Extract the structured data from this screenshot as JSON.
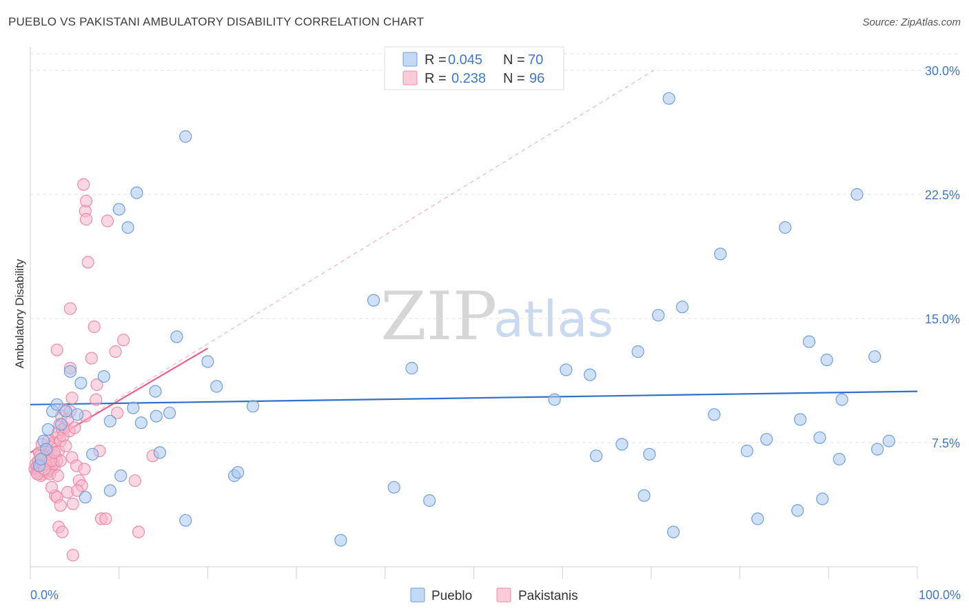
{
  "header": {
    "title": "PUEBLO VS PAKISTANI AMBULATORY DISABILITY CORRELATION CHART",
    "source": "Source: ZipAtlas.com"
  },
  "watermark": {
    "zip": "ZIP",
    "atlas": "atlas"
  },
  "legend": {
    "rows": [
      {
        "r_label": "R =",
        "r_value": "0.045",
        "n_label": "N =",
        "n_value": "70"
      },
      {
        "r_label": "R =",
        "r_value": "0.238",
        "n_label": "N =",
        "n_value": "96"
      }
    ]
  },
  "bottom_legend": {
    "pueblo": "Pueblo",
    "pakistanis": "Pakistanis"
  },
  "colors": {
    "pueblo_fill": "#a9c8f0",
    "pueblo_stroke": "#6f9edb",
    "pueblo_line": "#2f6fcc",
    "pakistani_fill": "#f7b6c8",
    "pakistani_stroke": "#ec8aa8",
    "pakistani_line": "#e8608f",
    "axis_label": "#3f78c8",
    "grid": "#e3e3e3"
  },
  "chart_data": {
    "type": "scatter",
    "title": "PUEBLO VS PAKISTANI AMBULATORY DISABILITY CORRELATION CHART",
    "xlabel": "",
    "ylabel": "Ambulatory Disability",
    "xlim": [
      0,
      100
    ],
    "ylim": [
      0,
      31
    ],
    "x_tick_labels": [
      "0.0%",
      "100.0%"
    ],
    "y_ticks": [
      7.5,
      15.0,
      22.5,
      30.0
    ],
    "y_tick_labels": [
      "7.5%",
      "15.0%",
      "22.5%",
      "30.0%"
    ],
    "grid": true,
    "series": [
      {
        "name": "Pueblo",
        "R": 0.045,
        "N": 70,
        "trend": {
          "x": [
            0,
            100
          ],
          "y": [
            9.8,
            10.6
          ]
        },
        "points": [
          [
            2.0,
            8.3
          ],
          [
            2.5,
            9.4
          ],
          [
            3.0,
            9.8
          ],
          [
            3.5,
            8.6
          ],
          [
            4.0,
            9.4
          ],
          [
            4.5,
            11.8
          ],
          [
            5.3,
            9.2
          ],
          [
            5.7,
            11.1
          ],
          [
            6.2,
            4.2
          ],
          [
            7.0,
            6.8
          ],
          [
            8.3,
            11.5
          ],
          [
            9.0,
            8.8
          ],
          [
            9.0,
            4.6
          ],
          [
            10.2,
            5.5
          ],
          [
            10.0,
            21.6
          ],
          [
            11.0,
            20.5
          ],
          [
            11.6,
            9.6
          ],
          [
            12.0,
            22.6
          ],
          [
            12.5,
            8.7
          ],
          [
            14.1,
            10.6
          ],
          [
            14.2,
            9.1
          ],
          [
            14.6,
            6.9
          ],
          [
            15.7,
            9.3
          ],
          [
            16.5,
            13.9
          ],
          [
            17.5,
            26.0
          ],
          [
            17.5,
            2.8
          ],
          [
            20.0,
            12.4
          ],
          [
            21.0,
            10.9
          ],
          [
            23.0,
            5.5
          ],
          [
            23.4,
            5.7
          ],
          [
            25.1,
            9.7
          ],
          [
            35.0,
            1.6
          ],
          [
            38.7,
            16.1
          ],
          [
            41.0,
            4.8
          ],
          [
            43.0,
            12.0
          ],
          [
            45.0,
            4.0
          ],
          [
            59.1,
            10.1
          ],
          [
            60.4,
            11.9
          ],
          [
            63.1,
            11.6
          ],
          [
            63.8,
            6.7
          ],
          [
            66.7,
            7.4
          ],
          [
            68.5,
            13.0
          ],
          [
            69.2,
            4.3
          ],
          [
            69.8,
            6.8
          ],
          [
            70.8,
            15.2
          ],
          [
            72.0,
            28.3
          ],
          [
            72.5,
            2.1
          ],
          [
            73.5,
            15.7
          ],
          [
            77.1,
            9.2
          ],
          [
            77.8,
            18.9
          ],
          [
            80.8,
            7.0
          ],
          [
            82.0,
            2.9
          ],
          [
            83.0,
            7.7
          ],
          [
            85.1,
            20.5
          ],
          [
            86.5,
            3.4
          ],
          [
            86.8,
            8.9
          ],
          [
            87.8,
            13.6
          ],
          [
            89.0,
            7.8
          ],
          [
            89.3,
            4.1
          ],
          [
            89.8,
            12.5
          ],
          [
            91.2,
            6.5
          ],
          [
            91.5,
            10.1
          ],
          [
            93.2,
            22.5
          ],
          [
            95.2,
            12.7
          ],
          [
            95.5,
            7.1
          ],
          [
            96.8,
            7.6
          ],
          [
            1.0,
            6.1
          ],
          [
            1.2,
            6.5
          ],
          [
            1.5,
            7.6
          ],
          [
            1.8,
            7.1
          ]
        ]
      },
      {
        "name": "Pakistanis",
        "R": 0.238,
        "N": 96,
        "trend": {
          "x": [
            0,
            20
          ],
          "y": [
            6.9,
            13.2
          ]
        },
        "extension": {
          "x": [
            0,
            70.3
          ],
          "y": [
            6.9,
            30.0
          ]
        },
        "points": [
          [
            0.5,
            5.9
          ],
          [
            0.6,
            6.2
          ],
          [
            0.7,
            5.7
          ],
          [
            0.8,
            6.1
          ],
          [
            0.9,
            6.4
          ],
          [
            1.0,
            5.8
          ],
          [
            1.1,
            6.0
          ],
          [
            1.2,
            6.3
          ],
          [
            1.3,
            5.6
          ],
          [
            1.4,
            6.6
          ],
          [
            1.5,
            6.0
          ],
          [
            1.6,
            6.8
          ],
          [
            1.7,
            5.9
          ],
          [
            1.8,
            6.2
          ],
          [
            1.9,
            5.7
          ],
          [
            2.0,
            6.5
          ],
          [
            2.1,
            6.1
          ],
          [
            2.2,
            6.9
          ],
          [
            2.3,
            5.8
          ],
          [
            2.4,
            7.2
          ],
          [
            2.5,
            6.3
          ],
          [
            2.6,
            7.5
          ],
          [
            2.7,
            6.0
          ],
          [
            2.8,
            6.7
          ],
          [
            2.9,
            7.8
          ],
          [
            3.0,
            6.4
          ],
          [
            3.1,
            8.1
          ],
          [
            3.2,
            7.0
          ],
          [
            3.3,
            8.6
          ],
          [
            3.4,
            7.6
          ],
          [
            3.5,
            9.1
          ],
          [
            3.6,
            8.3
          ],
          [
            3.7,
            7.9
          ],
          [
            3.8,
            9.5
          ],
          [
            3.9,
            8.4
          ],
          [
            4.0,
            7.3
          ],
          [
            4.2,
            8.9
          ],
          [
            4.4,
            8.2
          ],
          [
            4.5,
            9.4
          ],
          [
            4.7,
            6.6
          ],
          [
            3.0,
            13.1
          ],
          [
            4.5,
            12.0
          ],
          [
            4.5,
            15.6
          ],
          [
            4.7,
            10.2
          ],
          [
            5.0,
            8.4
          ],
          [
            5.2,
            6.1
          ],
          [
            5.5,
            5.2
          ],
          [
            5.8,
            4.9
          ],
          [
            6.1,
            5.9
          ],
          [
            6.2,
            9.1
          ],
          [
            6.2,
            21.5
          ],
          [
            6.3,
            22.1
          ],
          [
            6.0,
            23.1
          ],
          [
            6.3,
            21.0
          ],
          [
            6.5,
            18.4
          ],
          [
            6.9,
            12.6
          ],
          [
            7.2,
            14.5
          ],
          [
            7.4,
            10.1
          ],
          [
            7.5,
            11.0
          ],
          [
            7.8,
            7.0
          ],
          [
            8.0,
            2.9
          ],
          [
            8.5,
            2.9
          ],
          [
            8.7,
            20.9
          ],
          [
            9.6,
            13.0
          ],
          [
            9.8,
            9.3
          ],
          [
            10.5,
            13.7
          ],
          [
            11.8,
            5.2
          ],
          [
            12.2,
            2.1
          ],
          [
            13.8,
            6.7
          ],
          [
            4.8,
            0.7
          ],
          [
            3.2,
            2.4
          ],
          [
            3.6,
            2.1
          ],
          [
            4.2,
            4.5
          ],
          [
            4.8,
            3.8
          ],
          [
            5.3,
            4.6
          ],
          [
            2.8,
            4.3
          ],
          [
            3.0,
            4.2
          ],
          [
            3.4,
            3.7
          ],
          [
            2.4,
            4.8
          ],
          [
            2.0,
            5.9
          ],
          [
            1.2,
            5.5
          ],
          [
            1.5,
            5.8
          ],
          [
            1.8,
            6.6
          ],
          [
            2.2,
            5.6
          ],
          [
            2.6,
            6.2
          ],
          [
            3.1,
            5.5
          ],
          [
            3.4,
            6.4
          ],
          [
            1.0,
            6.9
          ],
          [
            1.3,
            7.4
          ],
          [
            1.7,
            6.2
          ],
          [
            2.0,
            7.6
          ],
          [
            2.3,
            6.4
          ],
          [
            2.7,
            6.9
          ],
          [
            0.8,
            5.6
          ],
          [
            1.1,
            6.7
          ],
          [
            1.6,
            5.9
          ]
        ]
      }
    ]
  }
}
